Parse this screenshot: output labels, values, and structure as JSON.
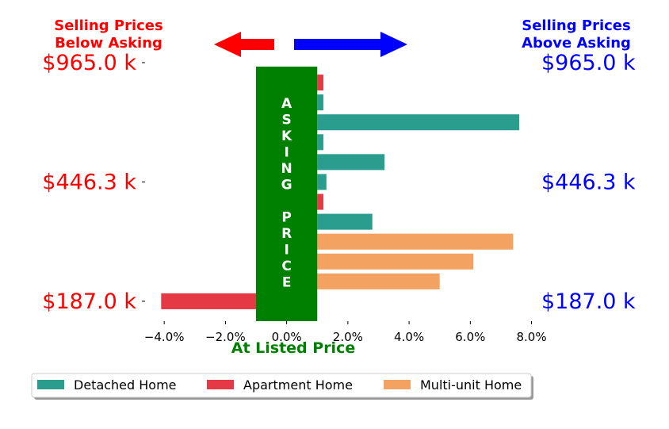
{
  "header": {
    "left_title_line1": "Selling Prices",
    "left_title_line2": "Below Asking",
    "right_title_line1": "Selling Prices",
    "right_title_line2": "Above Asking"
  },
  "colors": {
    "below": "#ff0000",
    "above": "#0000ff",
    "asking": "#008000",
    "detached": "#2a9d8f",
    "apartment": "#e63946",
    "multiunit": "#f4a261"
  },
  "asking_banner": {
    "letters": [
      "A",
      "S",
      "K",
      "I",
      "N",
      "G",
      "",
      "P",
      "R",
      "I",
      "C",
      "E"
    ],
    "x_range": [
      -1.0,
      1.0
    ]
  },
  "x_axis_title": "At Listed Price",
  "chart_data": {
    "type": "bar",
    "orientation": "horizontal",
    "x_ticks": [
      "−4.0%",
      "−2.0%",
      "0.0%",
      "2.0%",
      "4.0%",
      "6.0%",
      "8.0%"
    ],
    "x_tick_values": [
      -4,
      -2,
      0,
      2,
      4,
      6,
      8
    ],
    "xlim": [
      -4.6,
      8.4
    ],
    "ylim": [
      -1.0,
      12.0
    ],
    "y_tick_labels_left": [
      {
        "label": "$187.0 k",
        "row": 0
      },
      {
        "label": "$446.3 k",
        "row": 6
      },
      {
        "label": "$965.0 k",
        "row": 12
      }
    ],
    "y_tick_labels_right": [
      {
        "label": "$187.0 k",
        "row": 0
      },
      {
        "label": "$446.3 k",
        "row": 6
      },
      {
        "label": "$965.0 k",
        "row": 12
      }
    ],
    "bars": [
      {
        "row": 0,
        "type": "apartment",
        "start": -4.1,
        "end": -1.0
      },
      {
        "row": 1,
        "type": "multiunit",
        "start": 1.0,
        "end": 5.0
      },
      {
        "row": 2,
        "type": "multiunit",
        "start": 1.0,
        "end": 6.1
      },
      {
        "row": 3,
        "type": "multiunit",
        "start": 1.0,
        "end": 7.4
      },
      {
        "row": 4,
        "type": "detached",
        "start": 1.0,
        "end": 2.8
      },
      {
        "row": 5,
        "type": "apartment",
        "start": 1.0,
        "end": 1.2
      },
      {
        "row": 6,
        "type": "detached",
        "start": 1.0,
        "end": 1.3
      },
      {
        "row": 7,
        "type": "detached",
        "start": 1.0,
        "end": 3.2
      },
      {
        "row": 8,
        "type": "detached",
        "start": 1.0,
        "end": 1.2
      },
      {
        "row": 9,
        "type": "detached",
        "start": 1.0,
        "end": 7.6
      },
      {
        "row": 10,
        "type": "detached",
        "start": 1.0,
        "end": 1.2
      },
      {
        "row": 11,
        "type": "apartment",
        "start": 1.0,
        "end": 1.2
      }
    ],
    "legend": [
      {
        "label": "Detached Home",
        "type": "detached"
      },
      {
        "label": "Apartment Home",
        "type": "apartment"
      },
      {
        "label": "Multi-unit Home",
        "type": "multiunit"
      }
    ],
    "legend_position": "bottom"
  }
}
